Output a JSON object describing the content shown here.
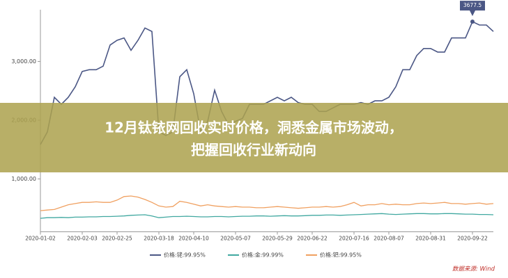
{
  "chart_data": {
    "type": "line",
    "categories": [
      "2020-01-02",
      null,
      null,
      null,
      null,
      null,
      "2020-02-03",
      null,
      null,
      null,
      null,
      "2020-02-25",
      null,
      null,
      null,
      null,
      null,
      "2020-03-18",
      null,
      null,
      null,
      null,
      "2020-04-10",
      null,
      null,
      null,
      null,
      null,
      "2020-05-07",
      null,
      null,
      null,
      null,
      null,
      "2020-05-29",
      null,
      null,
      null,
      null,
      "2020-06-22",
      null,
      null,
      null,
      null,
      null,
      "2020-07-16",
      null,
      null,
      null,
      null,
      "2020-08-07",
      null,
      null,
      null,
      null,
      null,
      "2020-08-31",
      null,
      null,
      null,
      null,
      null,
      "2020-09-22",
      null,
      null,
      null
    ],
    "series": [
      {
        "name": "价格:铑:99.95%",
        "color": "#4b5785",
        "values": [
          1585,
          1800,
          2390,
          2270,
          2390,
          2570,
          2830,
          2860,
          2860,
          2920,
          3280,
          3360,
          3400,
          3190,
          3360,
          3570,
          3510,
          1800,
          1740,
          1800,
          2740,
          2860,
          2450,
          1800,
          1980,
          2510,
          2150,
          1920,
          1980,
          2030,
          2270,
          2270,
          2270,
          2330,
          2390,
          2330,
          2390,
          2300,
          2270,
          2270,
          2150,
          2150,
          2210,
          2270,
          2270,
          2270,
          2300,
          2270,
          2330,
          2330,
          2390,
          2570,
          2860,
          2860,
          3100,
          3220,
          3220,
          3160,
          3160,
          3400,
          3400,
          3400,
          3677.5,
          3620,
          3620,
          3510
        ],
        "value_labels": [
          null,
          null,
          null,
          null,
          null,
          null,
          null,
          null,
          null,
          null,
          null,
          null,
          null,
          null,
          null,
          null,
          null,
          null,
          null,
          null,
          null,
          null,
          null,
          null,
          null,
          null,
          null,
          null,
          null,
          null,
          null,
          null,
          null,
          null,
          null,
          null,
          null,
          null,
          null,
          null,
          null,
          null,
          null,
          null,
          null,
          null,
          null,
          null,
          null,
          null,
          null,
          null,
          null,
          null,
          null,
          null,
          null,
          null,
          null,
          null,
          null,
          null,
          "3677.5",
          null,
          null,
          null
        ]
      },
      {
        "name": "价格:金:99.99%",
        "color": "#40a8a0",
        "values": [
          330,
          340,
          340,
          345,
          340,
          350,
          350,
          355,
          355,
          360,
          360,
          365,
          370,
          380,
          385,
          390,
          370,
          340,
          350,
          360,
          360,
          365,
          360,
          355,
          355,
          360,
          360,
          355,
          360,
          365,
          365,
          370,
          370,
          365,
          370,
          375,
          370,
          370,
          375,
          380,
          380,
          385,
          385,
          380,
          385,
          390,
          395,
          400,
          405,
          410,
          400,
          395,
          400,
          405,
          410,
          410,
          405,
          405,
          410,
          410,
          405,
          400,
          400,
          395,
          395,
          390
        ]
      },
      {
        "name": "价格:钯:99.95%",
        "color": "#f0a060",
        "values": [
          460,
          470,
          480,
          520,
          560,
          580,
          600,
          600,
          610,
          600,
          600,
          640,
          700,
          710,
          690,
          650,
          600,
          540,
          520,
          530,
          620,
          600,
          570,
          540,
          560,
          540,
          530,
          520,
          530,
          520,
          520,
          510,
          510,
          520,
          530,
          520,
          510,
          500,
          510,
          520,
          520,
          530,
          520,
          530,
          560,
          600,
          540,
          560,
          560,
          580,
          560,
          570,
          560,
          560,
          580,
          590,
          580,
          590,
          600,
          580,
          580,
          570,
          580,
          590,
          570,
          580
        ]
      }
    ],
    "ylim": [
      100,
      3850
    ],
    "yticks": [
      {
        "value": 1000,
        "label": "1,000.00"
      },
      {
        "value": 2000,
        "label": "2,000.00"
      },
      {
        "value": 3000,
        "label": "3,000.00"
      }
    ],
    "source": "数据来源: Wind"
  },
  "overlay_title": [
    "12月钛铱网回收实时价格，洞悉金属市场波动，",
    "把握回收行业新动向"
  ]
}
